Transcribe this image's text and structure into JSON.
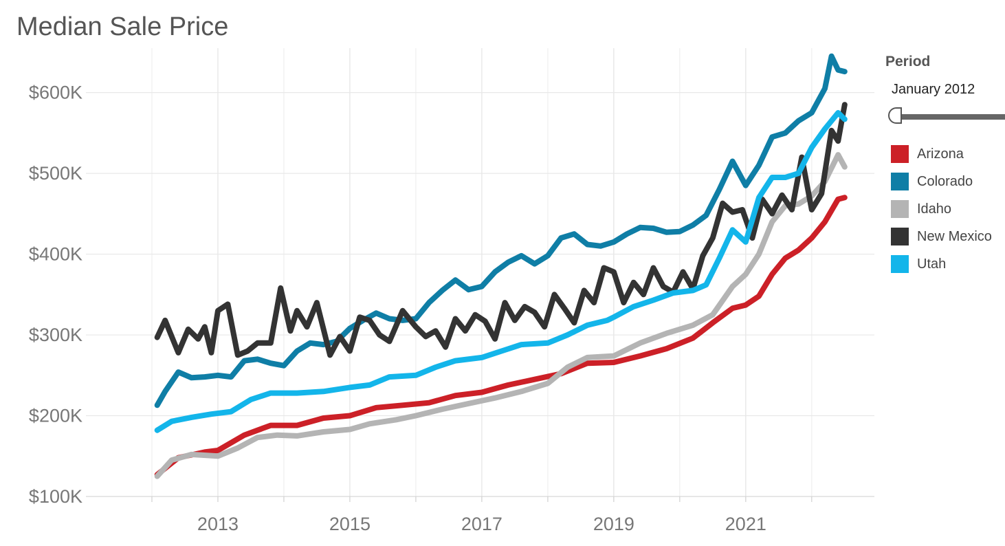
{
  "title": "Median Sale Price",
  "period": {
    "label": "Period",
    "value": "January 2012",
    "slider_position": 0
  },
  "chart_data": {
    "type": "line",
    "title": "Median Sale Price",
    "xlabel": "",
    "ylabel": "",
    "x_ticks": [
      "2013",
      "2015",
      "2017",
      "2019",
      "2021"
    ],
    "y_ticks": [
      "$100K",
      "$200K",
      "$300K",
      "$400K",
      "$500K",
      "$600K"
    ],
    "xlim": [
      2011.0,
      2022.95
    ],
    "ylim": [
      100,
      655
    ],
    "grid": true,
    "legend_position": "right",
    "series": [
      {
        "name": "Arizona",
        "color": "#cc2027",
        "points": [
          [
            2012.08,
            127
          ],
          [
            2012.4,
            148
          ],
          [
            2012.8,
            155
          ],
          [
            2013.0,
            157
          ],
          [
            2013.4,
            176
          ],
          [
            2013.8,
            188
          ],
          [
            2014.2,
            188
          ],
          [
            2014.6,
            197
          ],
          [
            2015.0,
            200
          ],
          [
            2015.4,
            210
          ],
          [
            2015.8,
            213
          ],
          [
            2016.2,
            216
          ],
          [
            2016.6,
            225
          ],
          [
            2017.0,
            229
          ],
          [
            2017.4,
            238
          ],
          [
            2017.8,
            245
          ],
          [
            2018.2,
            252
          ],
          [
            2018.6,
            265
          ],
          [
            2019.0,
            266
          ],
          [
            2019.4,
            274
          ],
          [
            2019.8,
            283
          ],
          [
            2020.2,
            296
          ],
          [
            2020.5,
            315
          ],
          [
            2020.8,
            333
          ],
          [
            2021.0,
            337
          ],
          [
            2021.2,
            348
          ],
          [
            2021.4,
            375
          ],
          [
            2021.6,
            395
          ],
          [
            2021.8,
            405
          ],
          [
            2022.0,
            420
          ],
          [
            2022.2,
            440
          ],
          [
            2022.4,
            468
          ],
          [
            2022.5,
            470
          ]
        ]
      },
      {
        "name": "Colorado",
        "color": "#0f7ea6",
        "points": [
          [
            2012.08,
            213
          ],
          [
            2012.2,
            230
          ],
          [
            2012.4,
            254
          ],
          [
            2012.6,
            247
          ],
          [
            2012.8,
            248
          ],
          [
            2013.0,
            250
          ],
          [
            2013.2,
            248
          ],
          [
            2013.4,
            268
          ],
          [
            2013.6,
            270
          ],
          [
            2013.8,
            265
          ],
          [
            2014.0,
            262
          ],
          [
            2014.2,
            280
          ],
          [
            2014.4,
            290
          ],
          [
            2014.6,
            288
          ],
          [
            2014.8,
            292
          ],
          [
            2015.0,
            308
          ],
          [
            2015.2,
            318
          ],
          [
            2015.4,
            327
          ],
          [
            2015.6,
            320
          ],
          [
            2015.8,
            318
          ],
          [
            2016.0,
            320
          ],
          [
            2016.2,
            340
          ],
          [
            2016.4,
            355
          ],
          [
            2016.6,
            368
          ],
          [
            2016.8,
            356
          ],
          [
            2017.0,
            360
          ],
          [
            2017.2,
            378
          ],
          [
            2017.4,
            390
          ],
          [
            2017.6,
            398
          ],
          [
            2017.8,
            388
          ],
          [
            2018.0,
            398
          ],
          [
            2018.2,
            420
          ],
          [
            2018.4,
            425
          ],
          [
            2018.6,
            412
          ],
          [
            2018.8,
            410
          ],
          [
            2019.0,
            415
          ],
          [
            2019.2,
            425
          ],
          [
            2019.4,
            433
          ],
          [
            2019.6,
            432
          ],
          [
            2019.8,
            427
          ],
          [
            2020.0,
            428
          ],
          [
            2020.2,
            436
          ],
          [
            2020.4,
            448
          ],
          [
            2020.6,
            480
          ],
          [
            2020.8,
            515
          ],
          [
            2021.0,
            485
          ],
          [
            2021.2,
            510
          ],
          [
            2021.4,
            545
          ],
          [
            2021.6,
            550
          ],
          [
            2021.8,
            565
          ],
          [
            2022.0,
            575
          ],
          [
            2022.2,
            605
          ],
          [
            2022.3,
            645
          ],
          [
            2022.4,
            628
          ],
          [
            2022.5,
            626
          ]
        ]
      },
      {
        "name": "Idaho",
        "color": "#b4b4b4",
        "points": [
          [
            2012.08,
            125
          ],
          [
            2012.3,
            145
          ],
          [
            2012.6,
            152
          ],
          [
            2013.0,
            150
          ],
          [
            2013.3,
            160
          ],
          [
            2013.6,
            173
          ],
          [
            2013.9,
            176
          ],
          [
            2014.2,
            175
          ],
          [
            2014.6,
            180
          ],
          [
            2015.0,
            183
          ],
          [
            2015.3,
            190
          ],
          [
            2015.7,
            195
          ],
          [
            2016.0,
            200
          ],
          [
            2016.4,
            208
          ],
          [
            2016.8,
            215
          ],
          [
            2017.2,
            222
          ],
          [
            2017.6,
            230
          ],
          [
            2018.0,
            240
          ],
          [
            2018.3,
            260
          ],
          [
            2018.6,
            272
          ],
          [
            2019.0,
            274
          ],
          [
            2019.4,
            290
          ],
          [
            2019.8,
            302
          ],
          [
            2020.2,
            312
          ],
          [
            2020.5,
            325
          ],
          [
            2020.8,
            360
          ],
          [
            2021.0,
            375
          ],
          [
            2021.2,
            400
          ],
          [
            2021.4,
            440
          ],
          [
            2021.6,
            460
          ],
          [
            2021.8,
            462
          ],
          [
            2022.0,
            472
          ],
          [
            2022.2,
            490
          ],
          [
            2022.4,
            523
          ],
          [
            2022.5,
            508
          ]
        ]
      },
      {
        "name": "New Mexico",
        "color": "#333333",
        "points": [
          [
            2012.08,
            297
          ],
          [
            2012.2,
            318
          ],
          [
            2012.4,
            278
          ],
          [
            2012.55,
            307
          ],
          [
            2012.7,
            295
          ],
          [
            2012.8,
            310
          ],
          [
            2012.9,
            278
          ],
          [
            2013.0,
            330
          ],
          [
            2013.15,
            338
          ],
          [
            2013.3,
            275
          ],
          [
            2013.45,
            280
          ],
          [
            2013.6,
            290
          ],
          [
            2013.8,
            290
          ],
          [
            2013.95,
            358
          ],
          [
            2014.1,
            305
          ],
          [
            2014.2,
            330
          ],
          [
            2014.35,
            310
          ],
          [
            2014.5,
            340
          ],
          [
            2014.7,
            275
          ],
          [
            2014.85,
            298
          ],
          [
            2015.0,
            280
          ],
          [
            2015.15,
            322
          ],
          [
            2015.3,
            318
          ],
          [
            2015.45,
            300
          ],
          [
            2015.6,
            292
          ],
          [
            2015.8,
            330
          ],
          [
            2016.0,
            310
          ],
          [
            2016.15,
            298
          ],
          [
            2016.3,
            305
          ],
          [
            2016.45,
            285
          ],
          [
            2016.6,
            320
          ],
          [
            2016.75,
            305
          ],
          [
            2016.9,
            325
          ],
          [
            2017.05,
            317
          ],
          [
            2017.2,
            295
          ],
          [
            2017.35,
            340
          ],
          [
            2017.5,
            318
          ],
          [
            2017.65,
            335
          ],
          [
            2017.8,
            328
          ],
          [
            2017.95,
            310
          ],
          [
            2018.1,
            350
          ],
          [
            2018.25,
            333
          ],
          [
            2018.4,
            315
          ],
          [
            2018.55,
            355
          ],
          [
            2018.7,
            340
          ],
          [
            2018.85,
            383
          ],
          [
            2019.0,
            378
          ],
          [
            2019.15,
            340
          ],
          [
            2019.3,
            365
          ],
          [
            2019.45,
            350
          ],
          [
            2019.6,
            383
          ],
          [
            2019.75,
            360
          ],
          [
            2019.9,
            353
          ],
          [
            2020.05,
            378
          ],
          [
            2020.2,
            357
          ],
          [
            2020.35,
            398
          ],
          [
            2020.5,
            420
          ],
          [
            2020.65,
            463
          ],
          [
            2020.8,
            452
          ],
          [
            2020.95,
            455
          ],
          [
            2021.1,
            420
          ],
          [
            2021.25,
            468
          ],
          [
            2021.4,
            450
          ],
          [
            2021.55,
            473
          ],
          [
            2021.7,
            455
          ],
          [
            2021.85,
            520
          ],
          [
            2022.0,
            455
          ],
          [
            2022.15,
            475
          ],
          [
            2022.3,
            553
          ],
          [
            2022.4,
            540
          ],
          [
            2022.5,
            585
          ]
        ]
      },
      {
        "name": "Utah",
        "color": "#13b5ea",
        "points": [
          [
            2012.08,
            182
          ],
          [
            2012.3,
            193
          ],
          [
            2012.6,
            198
          ],
          [
            2012.9,
            202
          ],
          [
            2013.2,
            205
          ],
          [
            2013.5,
            220
          ],
          [
            2013.8,
            228
          ],
          [
            2014.2,
            228
          ],
          [
            2014.6,
            230
          ],
          [
            2015.0,
            235
          ],
          [
            2015.3,
            238
          ],
          [
            2015.6,
            248
          ],
          [
            2016.0,
            250
          ],
          [
            2016.3,
            260
          ],
          [
            2016.6,
            268
          ],
          [
            2017.0,
            272
          ],
          [
            2017.3,
            280
          ],
          [
            2017.6,
            288
          ],
          [
            2018.0,
            290
          ],
          [
            2018.3,
            300
          ],
          [
            2018.6,
            312
          ],
          [
            2018.9,
            318
          ],
          [
            2019.0,
            322
          ],
          [
            2019.3,
            335
          ],
          [
            2019.6,
            343
          ],
          [
            2019.9,
            352
          ],
          [
            2020.2,
            355
          ],
          [
            2020.4,
            362
          ],
          [
            2020.6,
            395
          ],
          [
            2020.8,
            430
          ],
          [
            2021.0,
            415
          ],
          [
            2021.2,
            470
          ],
          [
            2021.4,
            495
          ],
          [
            2021.6,
            495
          ],
          [
            2021.8,
            500
          ],
          [
            2022.0,
            532
          ],
          [
            2022.2,
            555
          ],
          [
            2022.4,
            575
          ],
          [
            2022.5,
            567
          ]
        ]
      }
    ]
  }
}
